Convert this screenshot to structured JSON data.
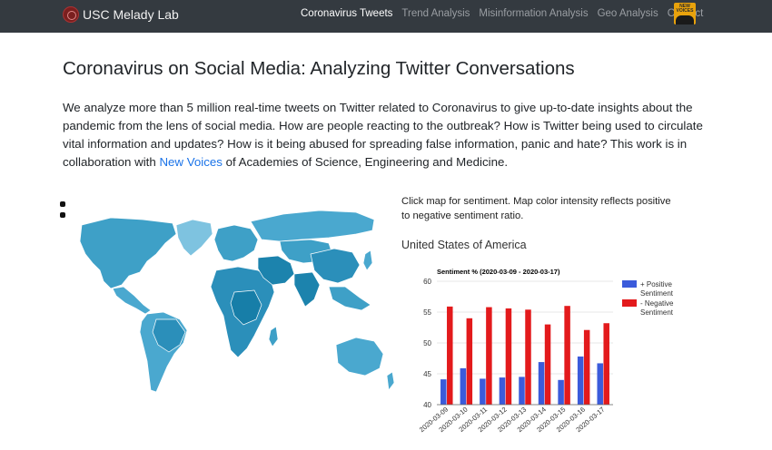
{
  "navbar": {
    "brand": "USC Melady Lab",
    "links": [
      {
        "label": "Coronavirus Tweets",
        "active": true
      },
      {
        "label": "Trend Analysis",
        "active": false
      },
      {
        "label": "Misinformation Analysis",
        "active": false
      },
      {
        "label": "Geo Analysis",
        "active": false
      },
      {
        "label": "Contact",
        "active": false
      }
    ],
    "badge_text": "NEW VOICES"
  },
  "page": {
    "title": "Coronavirus on Social Media: Analyzing Twitter Conversations",
    "intro_text": "We analyze more than 5 million real-time tweets on Twitter related to Coronavirus to give up-to-date insights about the pandemic from the lens of social media. How are people reacting to the outbreak? How is Twitter being used to circulate vital information and updates? How is it being abused for spreading false information, panic and hate? This work is in collaboration with ",
    "intro_link": "New Voices",
    "intro_tail": " of Academies of Science, Engineering and Medicine."
  },
  "map_panel": {
    "note": "Click map for sentiment. Map color intensity reflects positive to negative sentiment ratio.",
    "selected_country": "United States of America"
  },
  "colors": {
    "navbar_bg": "#343a40",
    "link_blue": "#1a73e8",
    "positive": "#3b5bdb",
    "negative": "#e31a1c"
  },
  "chart_data": {
    "type": "bar",
    "title": "Sentiment % (2020-03-09 - 2020-03-17)",
    "categories": [
      "2020-03-09",
      "2020-03-10",
      "2020-03-11",
      "2020-03-12",
      "2020-03-13",
      "2020-03-14",
      "2020-03-15",
      "2020-03-16",
      "2020-03-17"
    ],
    "series": [
      {
        "name": "+ Positive Sentiment",
        "values": [
          44.1,
          45.9,
          44.2,
          44.4,
          44.5,
          46.9,
          44.0,
          47.8,
          46.7
        ]
      },
      {
        "name": "- Negative Sentiment",
        "values": [
          55.9,
          54.0,
          55.8,
          55.6,
          55.4,
          53.0,
          56.0,
          52.1,
          53.2
        ]
      }
    ],
    "ylim": [
      40,
      60
    ],
    "yticks": [
      40,
      45,
      50,
      55,
      60
    ],
    "grid": true,
    "legend": "right"
  }
}
